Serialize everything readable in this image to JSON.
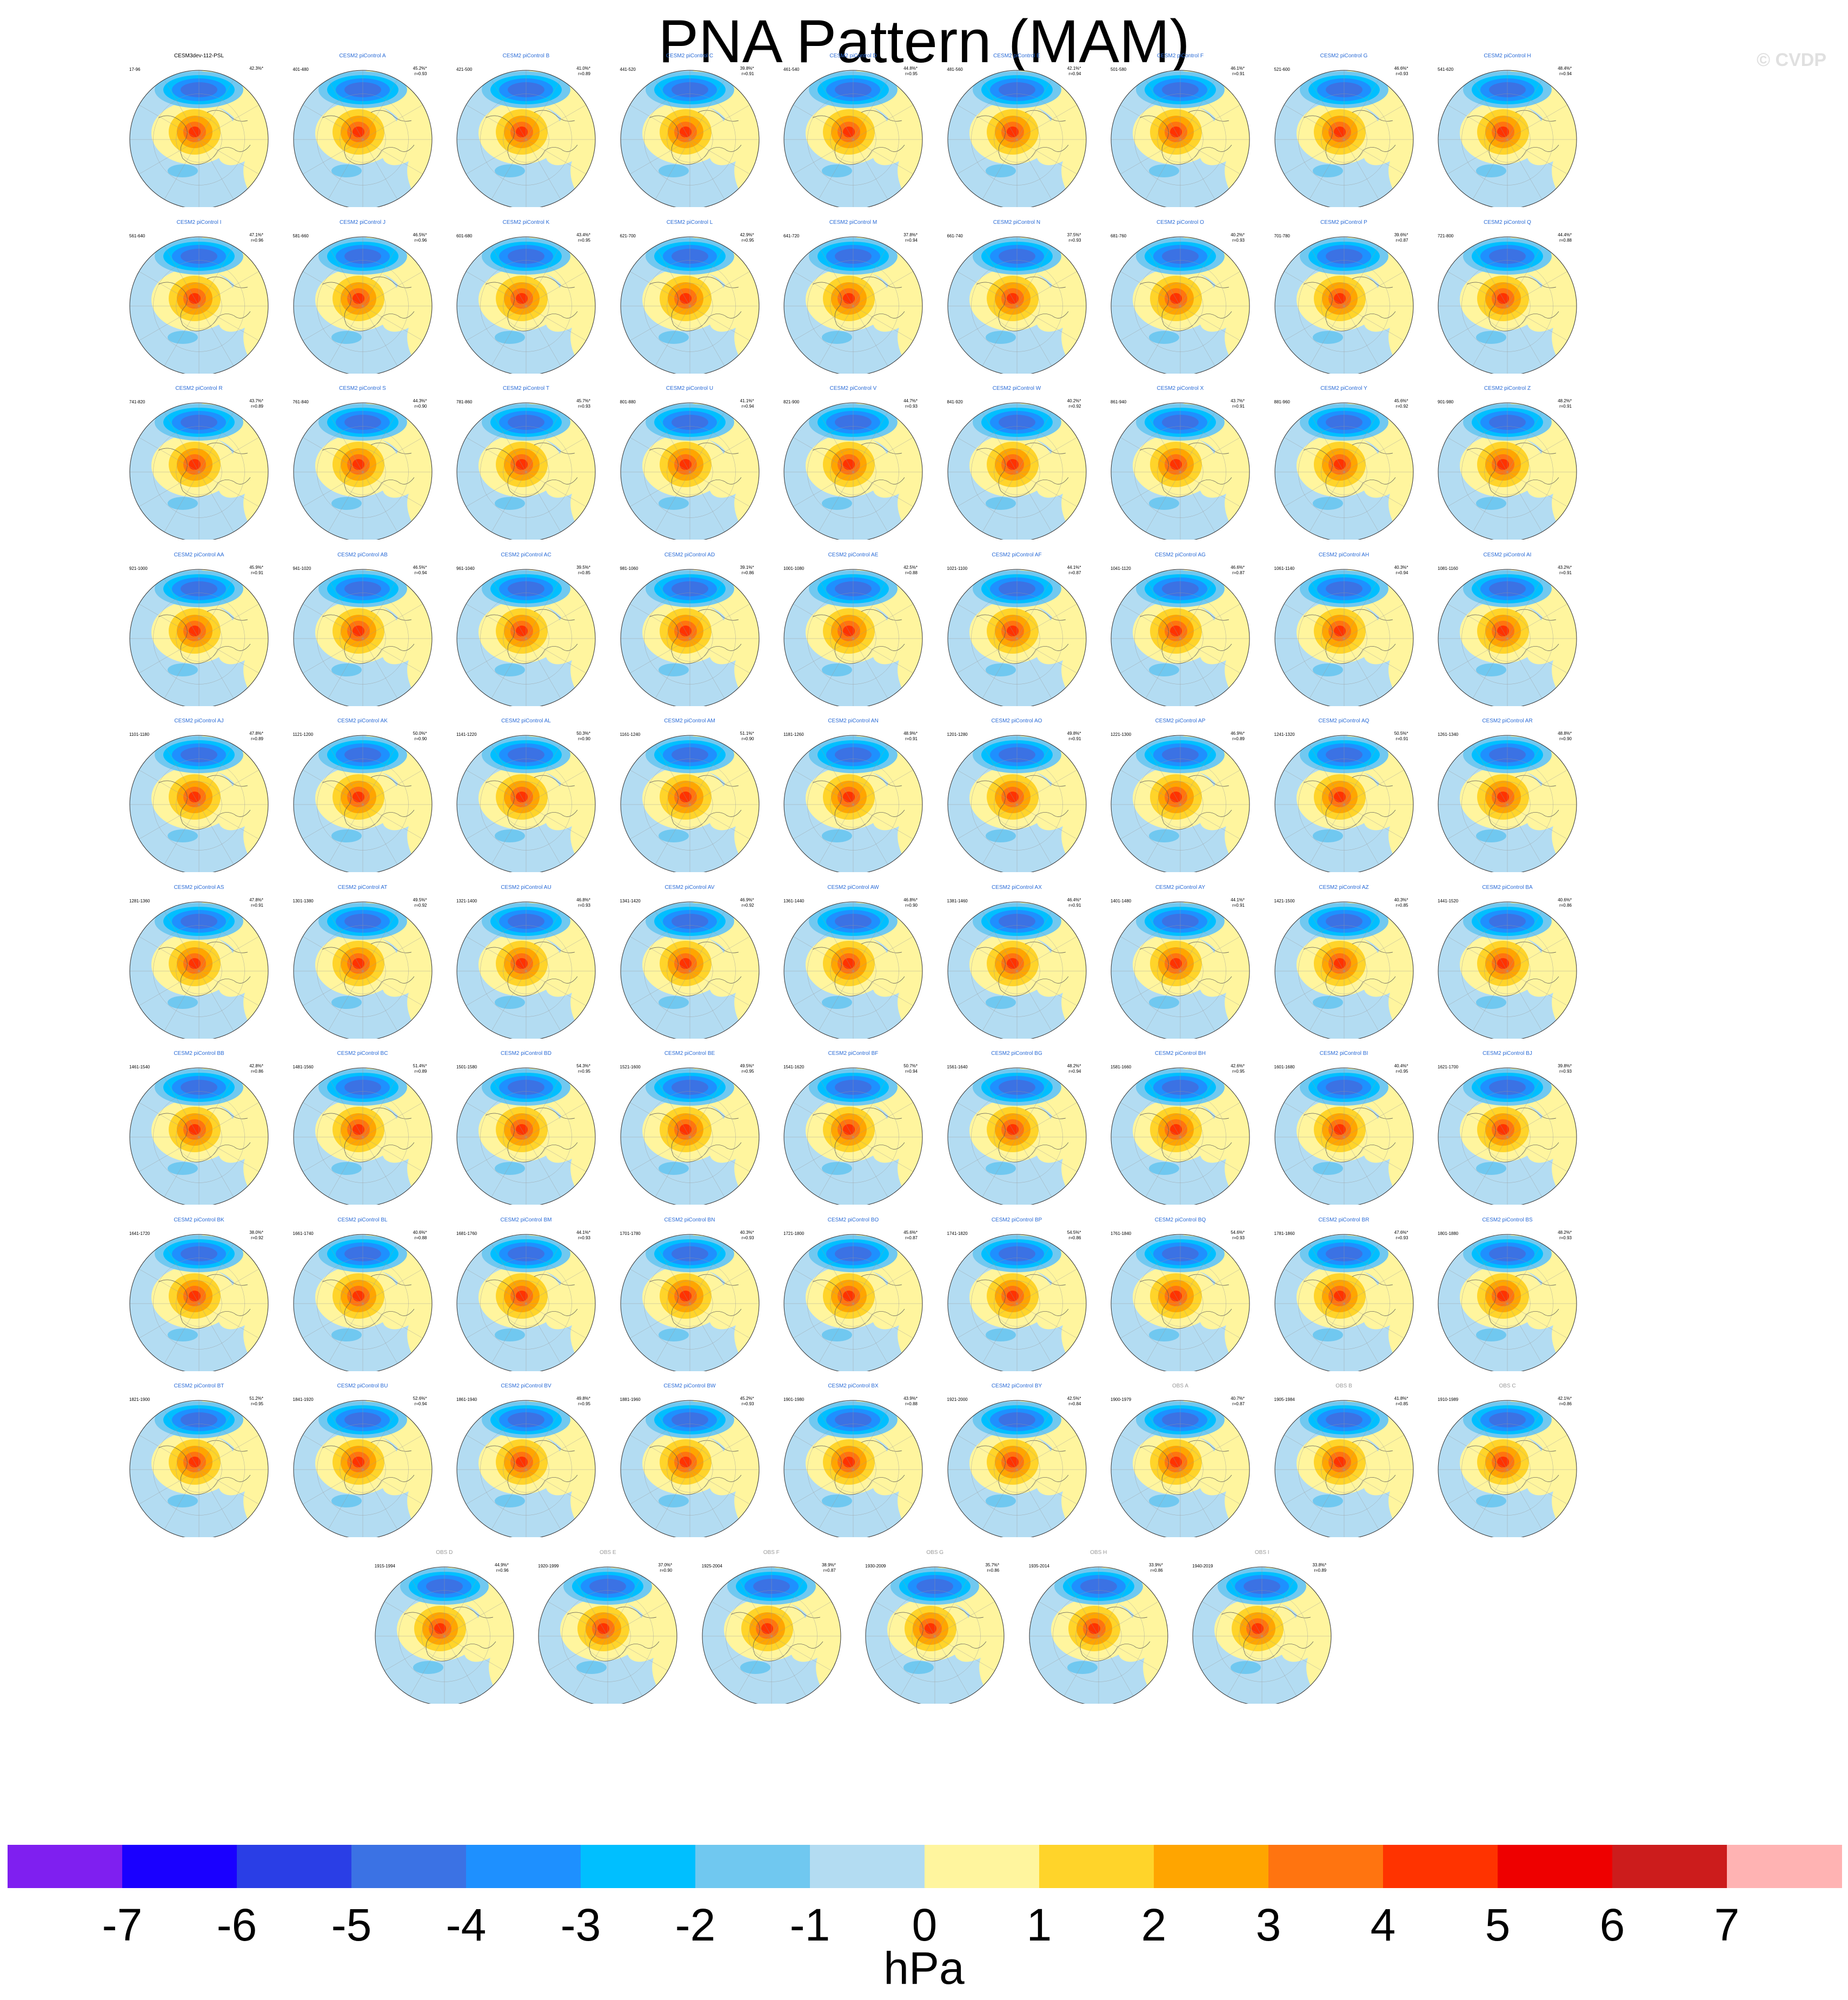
{
  "title": "PNA Pattern (MAM)",
  "watermark": "© CVDP",
  "units": "hPa",
  "chart_data": {
    "type": "contour-map-grid",
    "map_projection": "polar stereographic, Northern Hemisphere",
    "colorbar": {
      "ticks": [
        "-7",
        "-6",
        "-5",
        "-4",
        "-3",
        "-2",
        "-1",
        "0",
        "1",
        "2",
        "3",
        "4",
        "5",
        "6",
        "7"
      ],
      "colors": [
        "#7f1ff0",
        "#1a00ff",
        "#2a3ee6",
        "#3b72e4",
        "#1e90ff",
        "#00bfff",
        "#70c8f0",
        "#b3dcf2",
        "#fff59e",
        "#ffd42a",
        "#ffa500",
        "#ff7410",
        "#ff3300",
        "#ee0000",
        "#cc1c1c",
        "#ffb3b3"
      ],
      "units": "hPa"
    },
    "panels": [
      {
        "title": "CESM3dev-112-PSL",
        "years": "17-96",
        "pct": "42.3%*"
      },
      {
        "title": "CESM2 piControl A",
        "years": "401-480",
        "pct": "45.2%*\nr=0.93"
      },
      {
        "title": "CESM2 piControl B",
        "years": "421-500",
        "pct": "41.0%*\nr=0.89"
      },
      {
        "title": "CESM2 piControl C",
        "years": "441-520",
        "pct": "39.8%*\nr=0.91"
      },
      {
        "title": "CESM2 piControl D",
        "years": "461-540",
        "pct": "44.8%*\nr=0.95"
      },
      {
        "title": "CESM2 piControl E",
        "years": "481-560",
        "pct": "42.1%*\nr=0.94"
      },
      {
        "title": "CESM2 piControl F",
        "years": "501-580",
        "pct": "46.1%*\nr=0.91"
      },
      {
        "title": "CESM2 piControl G",
        "years": "521-600",
        "pct": "46.6%*\nr=0.93"
      },
      {
        "title": "CESM2 piControl H",
        "years": "541-620",
        "pct": "48.4%*\nr=0.94"
      },
      {
        "title": "CESM2 piControl I",
        "years": "561-640",
        "pct": "47.1%*\nr=0.96"
      },
      {
        "title": "CESM2 piControl J",
        "years": "581-660",
        "pct": "46.5%*\nr=0.96"
      },
      {
        "title": "CESM2 piControl K",
        "years": "601-680",
        "pct": "43.4%*\nr=0.95"
      },
      {
        "title": "CESM2 piControl L",
        "years": "621-700",
        "pct": "42.9%*\nr=0.95"
      },
      {
        "title": "CESM2 piControl M",
        "years": "641-720",
        "pct": "37.8%*\nr=0.94"
      },
      {
        "title": "CESM2 piControl N",
        "years": "661-740",
        "pct": "37.5%*\nr=0.93"
      },
      {
        "title": "CESM2 piControl O",
        "years": "681-760",
        "pct": "40.2%*\nr=0.93"
      },
      {
        "title": "CESM2 piControl P",
        "years": "701-780",
        "pct": "39.6%*\nr=0.87"
      },
      {
        "title": "CESM2 piControl Q",
        "years": "721-800",
        "pct": "44.4%*\nr=0.88"
      },
      {
        "title": "CESM2 piControl R",
        "years": "741-820",
        "pct": "43.7%*\nr=0.89"
      },
      {
        "title": "CESM2 piControl S",
        "years": "761-840",
        "pct": "44.3%*\nr=0.90"
      },
      {
        "title": "CESM2 piControl T",
        "years": "781-860",
        "pct": "45.7%*\nr=0.93"
      },
      {
        "title": "CESM2 piControl U",
        "years": "801-880",
        "pct": "41.1%*\nr=0.94"
      },
      {
        "title": "CESM2 piControl V",
        "years": "821-900",
        "pct": "44.7%*\nr=0.93"
      },
      {
        "title": "CESM2 piControl W",
        "years": "841-920",
        "pct": "40.2%*\nr=0.92"
      },
      {
        "title": "CESM2 piControl X",
        "years": "861-940",
        "pct": "43.7%*\nr=0.91"
      },
      {
        "title": "CESM2 piControl Y",
        "years": "881-960",
        "pct": "45.6%*\nr=0.92"
      },
      {
        "title": "CESM2 piControl Z",
        "years": "901-980",
        "pct": "48.2%*\nr=0.91"
      },
      {
        "title": "CESM2 piControl AA",
        "years": "921-1000",
        "pct": "45.9%*\nr=0.91"
      },
      {
        "title": "CESM2 piControl AB",
        "years": "941-1020",
        "pct": "46.5%*\nr=0.94"
      },
      {
        "title": "CESM2 piControl AC",
        "years": "961-1040",
        "pct": "39.5%*\nr=0.85"
      },
      {
        "title": "CESM2 piControl AD",
        "years": "981-1060",
        "pct": "39.1%*\nr=0.86"
      },
      {
        "title": "CESM2 piControl AE",
        "years": "1001-1080",
        "pct": "42.5%*\nr=0.88"
      },
      {
        "title": "CESM2 piControl AF",
        "years": "1021-1100",
        "pct": "44.1%*\nr=0.87"
      },
      {
        "title": "CESM2 piControl AG",
        "years": "1041-1120",
        "pct": "46.6%*\nr=0.87"
      },
      {
        "title": "CESM2 piControl AH",
        "years": "1061-1140",
        "pct": "40.3%*\nr=0.94"
      },
      {
        "title": "CESM2 piControl AI",
        "years": "1081-1160",
        "pct": "43.2%*\nr=0.91"
      },
      {
        "title": "CESM2 piControl AJ",
        "years": "1101-1180",
        "pct": "47.8%*\nr=0.89"
      },
      {
        "title": "CESM2 piControl AK",
        "years": "1121-1200",
        "pct": "50.0%*\nr=0.90"
      },
      {
        "title": "CESM2 piControl AL",
        "years": "1141-1220",
        "pct": "50.3%*\nr=0.90"
      },
      {
        "title": "CESM2 piControl AM",
        "years": "1161-1240",
        "pct": "51.1%*\nr=0.90"
      },
      {
        "title": "CESM2 piControl AN",
        "years": "1181-1260",
        "pct": "48.9%*\nr=0.91"
      },
      {
        "title": "CESM2 piControl AO",
        "years": "1201-1280",
        "pct": "49.8%*\nr=0.91"
      },
      {
        "title": "CESM2 piControl AP",
        "years": "1221-1300",
        "pct": "46.9%*\nr=0.89"
      },
      {
        "title": "CESM2 piControl AQ",
        "years": "1241-1320",
        "pct": "50.5%*\nr=0.91"
      },
      {
        "title": "CESM2 piControl AR",
        "years": "1261-1340",
        "pct": "48.8%*\nr=0.90"
      },
      {
        "title": "CESM2 piControl AS",
        "years": "1281-1360",
        "pct": "47.8%*\nr=0.91"
      },
      {
        "title": "CESM2 piControl AT",
        "years": "1301-1380",
        "pct": "49.5%*\nr=0.92"
      },
      {
        "title": "CESM2 piControl AU",
        "years": "1321-1400",
        "pct": "46.8%*\nr=0.93"
      },
      {
        "title": "CESM2 piControl AV",
        "years": "1341-1420",
        "pct": "46.9%*\nr=0.92"
      },
      {
        "title": "CESM2 piControl AW",
        "years": "1361-1440",
        "pct": "46.8%*\nr=0.90"
      },
      {
        "title": "CESM2 piControl AX",
        "years": "1381-1460",
        "pct": "46.4%*\nr=0.91"
      },
      {
        "title": "CESM2 piControl AY",
        "years": "1401-1480",
        "pct": "44.1%*\nr=0.91"
      },
      {
        "title": "CESM2 piControl AZ",
        "years": "1421-1500",
        "pct": "40.3%*\nr=0.85"
      },
      {
        "title": "CESM2 piControl BA",
        "years": "1441-1520",
        "pct": "40.6%*\nr=0.86"
      },
      {
        "title": "CESM2 piControl BB",
        "years": "1461-1540",
        "pct": "42.8%*\nr=0.86"
      },
      {
        "title": "CESM2 piControl BC",
        "years": "1481-1560",
        "pct": "51.4%*\nr=0.89"
      },
      {
        "title": "CESM2 piControl BD",
        "years": "1501-1580",
        "pct": "54.3%*\nr=0.95"
      },
      {
        "title": "CESM2 piControl BE",
        "years": "1521-1600",
        "pct": "49.5%*\nr=0.95"
      },
      {
        "title": "CESM2 piControl BF",
        "years": "1541-1620",
        "pct": "50.7%*\nr=0.94"
      },
      {
        "title": "CESM2 piControl BG",
        "years": "1561-1640",
        "pct": "48.2%*\nr=0.94"
      },
      {
        "title": "CESM2 piControl BH",
        "years": "1581-1660",
        "pct": "42.6%*\nr=0.95"
      },
      {
        "title": "CESM2 piControl BI",
        "years": "1601-1680",
        "pct": "40.4%*\nr=0.95"
      },
      {
        "title": "CESM2 piControl BJ",
        "years": "1621-1700",
        "pct": "39.8%*\nr=0.93"
      },
      {
        "title": "CESM2 piControl BK",
        "years": "1641-1720",
        "pct": "38.0%*\nr=0.92"
      },
      {
        "title": "CESM2 piControl BL",
        "years": "1661-1740",
        "pct": "40.6%*\nr=0.88"
      },
      {
        "title": "CESM2 piControl BM",
        "years": "1681-1760",
        "pct": "44.1%*\nr=0.93"
      },
      {
        "title": "CESM2 piControl BN",
        "years": "1701-1780",
        "pct": "40.3%*\nr=0.93"
      },
      {
        "title": "CESM2 piControl BO",
        "years": "1721-1800",
        "pct": "45.6%*\nr=0.87"
      },
      {
        "title": "CESM2 piControl BP",
        "years": "1741-1820",
        "pct": "54.5%*\nr=0.86"
      },
      {
        "title": "CESM2 piControl BQ",
        "years": "1761-1840",
        "pct": "54.6%*\nr=0.93"
      },
      {
        "title": "CESM2 piControl BR",
        "years": "1781-1860",
        "pct": "47.6%*\nr=0.93"
      },
      {
        "title": "CESM2 piControl BS",
        "years": "1801-1880",
        "pct": "48.2%*\nr=0.93"
      },
      {
        "title": "CESM2 piControl BT",
        "years": "1821-1900",
        "pct": "51.2%*\nr=0.95"
      },
      {
        "title": "CESM2 piControl BU",
        "years": "1841-1920",
        "pct": "52.6%*\nr=0.94"
      },
      {
        "title": "CESM2 piControl BV",
        "years": "1861-1940",
        "pct": "49.8%*\nr=0.95"
      },
      {
        "title": "CESM2 piControl BW",
        "years": "1881-1960",
        "pct": "45.2%*\nr=0.93"
      },
      {
        "title": "CESM2 piControl BX",
        "years": "1901-1980",
        "pct": "43.9%*\nr=0.88"
      },
      {
        "title": "CESM2 piControl BY",
        "years": "1921-2000",
        "pct": "42.5%*\nr=0.84"
      },
      {
        "title": "OBS A",
        "years": "1900-1979",
        "pct": "40.7%*\nr=0.87"
      },
      {
        "title": "OBS B",
        "years": "1905-1984",
        "pct": "41.8%*\nr=0.85"
      },
      {
        "title": "OBS C",
        "years": "1910-1989",
        "pct": "42.1%*\nr=0.86"
      },
      {
        "title": "OBS D",
        "years": "1915-1994",
        "pct": "44.9%*\nr=0.96"
      },
      {
        "title": "OBS E",
        "years": "1920-1999",
        "pct": "37.0%*\nr=0.90"
      },
      {
        "title": "OBS F",
        "years": "1925-2004",
        "pct": "38.9%*\nr=0.87"
      },
      {
        "title": "OBS G",
        "years": "1930-2009",
        "pct": "35.7%*\nr=0.86"
      },
      {
        "title": "OBS H",
        "years": "1935-2014",
        "pct": "33.9%*\nr=0.86"
      },
      {
        "title": "OBS I",
        "years": "1940-2019",
        "pct": "33.8%*\nr=0.89"
      }
    ]
  }
}
